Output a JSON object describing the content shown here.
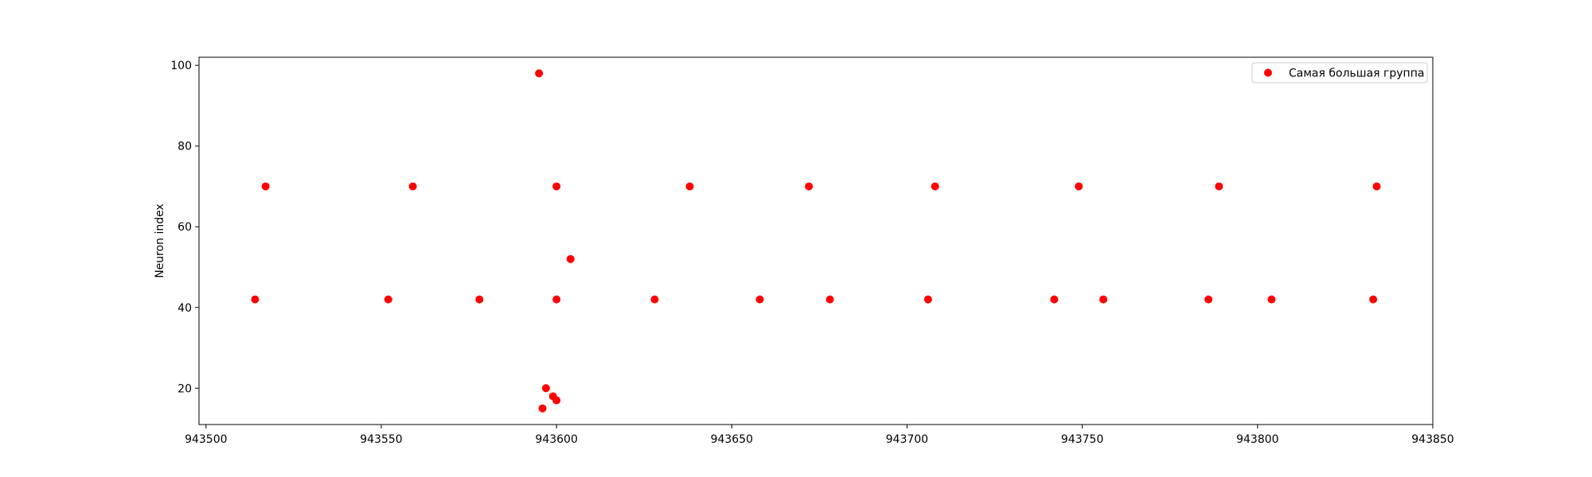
{
  "chart_data": {
    "type": "scatter",
    "title": "",
    "xlabel": "",
    "ylabel": "Neuron index",
    "xlim": [
      943498,
      943850
    ],
    "ylim": [
      11,
      102
    ],
    "xticks": [
      943500,
      943550,
      943600,
      943650,
      943700,
      943750,
      943800,
      943850
    ],
    "yticks": [
      20,
      40,
      60,
      80,
      100
    ],
    "grid": false,
    "legend_position": "top-right",
    "series": [
      {
        "name": "Самая большая группа",
        "color": "#ff0000",
        "marker": "circle",
        "points": [
          {
            "x": 943514,
            "y": 42
          },
          {
            "x": 943517,
            "y": 70
          },
          {
            "x": 943552,
            "y": 42
          },
          {
            "x": 943559,
            "y": 70
          },
          {
            "x": 943578,
            "y": 42
          },
          {
            "x": 943595,
            "y": 98
          },
          {
            "x": 943596,
            "y": 15
          },
          {
            "x": 943597,
            "y": 20
          },
          {
            "x": 943599,
            "y": 18
          },
          {
            "x": 943600,
            "y": 17
          },
          {
            "x": 943600,
            "y": 42
          },
          {
            "x": 943600,
            "y": 70
          },
          {
            "x": 943604,
            "y": 52
          },
          {
            "x": 943628,
            "y": 42
          },
          {
            "x": 943638,
            "y": 70
          },
          {
            "x": 943658,
            "y": 42
          },
          {
            "x": 943672,
            "y": 70
          },
          {
            "x": 943678,
            "y": 42
          },
          {
            "x": 943706,
            "y": 42
          },
          {
            "x": 943708,
            "y": 70
          },
          {
            "x": 943742,
            "y": 42
          },
          {
            "x": 943749,
            "y": 70
          },
          {
            "x": 943756,
            "y": 42
          },
          {
            "x": 943786,
            "y": 42
          },
          {
            "x": 943789,
            "y": 70
          },
          {
            "x": 943804,
            "y": 42
          },
          {
            "x": 943833,
            "y": 42
          },
          {
            "x": 943834,
            "y": 70
          }
        ]
      }
    ]
  }
}
